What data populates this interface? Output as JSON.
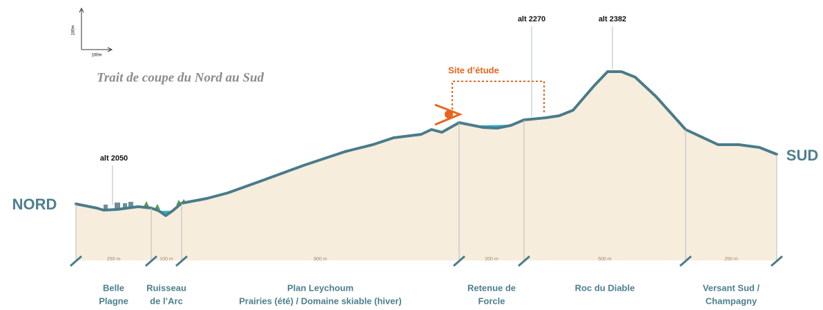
{
  "scale": {
    "vertical": "100m",
    "horizontal": "100m"
  },
  "title": "Trait de coupe du Nord au Sud",
  "ends": {
    "north": "NORD",
    "south": "SUD"
  },
  "site": "Site d’étude",
  "altitudes": [
    "alt 2050",
    "alt 2270",
    "alt 2382"
  ],
  "sections": [
    {
      "distance": "250 m",
      "name": [
        "Belle",
        "Plagne"
      ]
    },
    {
      "distance": "100 m",
      "name": [
        "Ruisseau",
        "de l’Arc"
      ]
    },
    {
      "distance": "900 m",
      "name": [
        "Plan Leychoum",
        "Prairies (été) / Domaine skiable (hiver)"
      ]
    },
    {
      "distance": "200 m",
      "name": [
        "Retenue de",
        "Forcle"
      ]
    },
    {
      "distance": "500 m",
      "name": [
        "Roc du Diable"
      ]
    },
    {
      "distance": "250 m",
      "name": [
        "Versant Sud /",
        "Champagny"
      ]
    }
  ]
}
